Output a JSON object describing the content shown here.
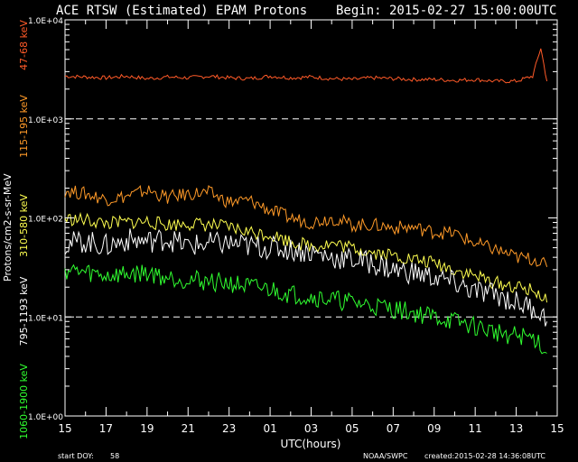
{
  "chart_data": {
    "type": "line",
    "title": "ACE RTSW (Estimated) EPAM Protons",
    "begin": "Begin: 2015-02-27 15:00:00UTC",
    "xlabel": "UTC(hours)",
    "ylabel": "Protons/cm2-s-sr-MeV",
    "yscale": "log",
    "xlim": [
      0,
      24
    ],
    "ylim": [
      1,
      10000
    ],
    "x_tick_values": [
      0,
      2,
      4,
      6,
      8,
      10,
      12,
      14,
      16,
      18,
      20,
      22,
      24
    ],
    "x_tick_labels": [
      "15",
      "17",
      "19",
      "21",
      "23",
      "01",
      "03",
      "05",
      "07",
      "09",
      "11",
      "13",
      "15"
    ],
    "y_tick_values": [
      1,
      10,
      100,
      1000,
      10000
    ],
    "y_tick_labels": [
      "1.0E+00",
      "1.0E+01",
      "1.0E+02",
      "1.0E+03",
      "1.0E+04"
    ],
    "thresholds": [
      10,
      1000
    ],
    "series": [
      {
        "name": "47-68 keV",
        "color": "#ff5a28",
        "x": [
          0,
          1,
          2,
          3,
          4,
          5,
          6,
          7,
          8,
          9,
          10,
          11,
          12,
          13,
          14,
          15,
          16,
          17,
          18,
          19,
          20,
          21,
          22,
          22.8,
          23.2,
          23.5
        ],
        "y": [
          2700,
          2650,
          2600,
          2700,
          2550,
          2650,
          2600,
          2700,
          2600,
          2550,
          2700,
          2600,
          2650,
          2550,
          2500,
          2600,
          2550,
          2500,
          2500,
          2450,
          2500,
          2400,
          2400,
          2700,
          5200,
          2400
        ]
      },
      {
        "name": "115-195 keV",
        "color": "#ff9a28",
        "x": [
          0,
          1,
          2,
          3,
          4,
          5,
          6,
          7,
          8,
          9,
          10,
          11,
          12,
          13,
          14,
          15,
          16,
          17,
          18,
          19,
          20,
          21,
          22,
          23,
          23.5
        ],
        "y": [
          190,
          175,
          155,
          165,
          190,
          160,
          175,
          180,
          145,
          150,
          120,
          100,
          90,
          100,
          85,
          85,
          80,
          80,
          72,
          70,
          55,
          48,
          40,
          38,
          32
        ]
      },
      {
        "name": "310-580 keV",
        "color": "#ffff50",
        "x": [
          0,
          1,
          2,
          3,
          4,
          5,
          6,
          7,
          8,
          9,
          10,
          11,
          12,
          13,
          14,
          15,
          16,
          17,
          18,
          19,
          20,
          21,
          22,
          23,
          23.5
        ],
        "y": [
          98,
          95,
          88,
          90,
          92,
          85,
          88,
          85,
          80,
          72,
          68,
          58,
          52,
          55,
          50,
          45,
          42,
          38,
          35,
          30,
          26,
          22,
          20,
          18,
          14
        ]
      },
      {
        "name": "795-1193 keV",
        "color": "#ffffff",
        "x": [
          0,
          1,
          2,
          3,
          4,
          5,
          6,
          7,
          8,
          9,
          10,
          11,
          12,
          13,
          14,
          15,
          16,
          17,
          18,
          19,
          20,
          21,
          22,
          23,
          23.5
        ],
        "y": [
          55,
          58,
          52,
          60,
          58,
          62,
          52,
          55,
          55,
          52,
          50,
          48,
          45,
          40,
          38,
          35,
          30,
          28,
          25,
          22,
          18,
          17,
          14,
          12,
          9
        ]
      },
      {
        "name": "1060-1900 keV",
        "color": "#30ff30",
        "x": [
          0,
          1,
          2,
          3,
          4,
          5,
          6,
          7,
          8,
          9,
          10,
          11,
          12,
          13,
          14,
          15,
          16,
          17,
          18,
          19,
          20,
          21,
          22,
          23,
          23.5
        ],
        "y": [
          30,
          28,
          26,
          27,
          28,
          25,
          24,
          23,
          22,
          20,
          19,
          17,
          16,
          15,
          14,
          13,
          12,
          11,
          10,
          9,
          8,
          7,
          6.5,
          6,
          4.3
        ]
      }
    ]
  },
  "footer": {
    "start_doy_label": "start DOY:",
    "start_doy": "58",
    "source": "NOAA/SWPC",
    "created": "created:2015-02-28 14:36:08UTC"
  }
}
